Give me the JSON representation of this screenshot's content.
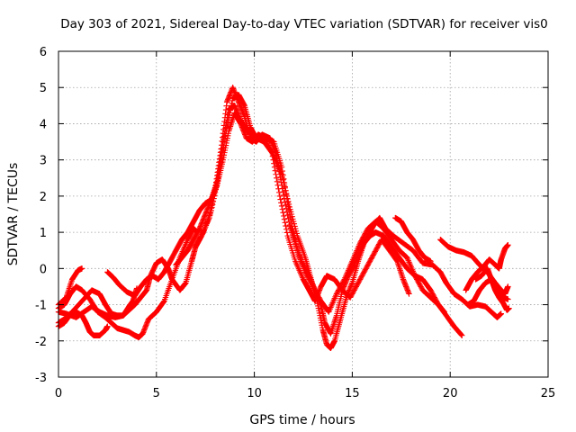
{
  "chart_data": {
    "type": "scatter",
    "title": "Day 303 of 2021, Sidereal Day-to-day VTEC variation (SDTVAR) for receiver vis0",
    "xlabel": "GPS time / hours",
    "ylabel": "SDTVAR / TECUs",
    "xlim": [
      0,
      25
    ],
    "ylim": [
      -3,
      6
    ],
    "x_ticks": [
      0,
      5,
      10,
      15,
      20,
      25
    ],
    "x_tick_labels": [
      "0",
      "5",
      "10",
      "15",
      "20",
      "25"
    ],
    "y_ticks": [
      -3,
      -2,
      -1,
      0,
      1,
      2,
      3,
      4,
      5,
      6
    ],
    "y_tick_labels": [
      "-3",
      "-2",
      "-1",
      "0",
      "1",
      "2",
      "3",
      "4",
      "5",
      "6"
    ],
    "grid": true,
    "marker": "+",
    "color": "#ff0000",
    "series": [
      {
        "name": "track-1",
        "points": [
          [
            0,
            -1.0
          ],
          [
            0.4,
            -0.8
          ],
          [
            0.7,
            -0.3
          ],
          [
            1.0,
            -0.05
          ],
          [
            1.2,
            0.0
          ]
        ]
      },
      {
        "name": "track-2",
        "points": [
          [
            0,
            -1.6
          ],
          [
            0.3,
            -1.5
          ],
          [
            0.7,
            -1.2
          ],
          [
            1.2,
            -0.9
          ],
          [
            1.7,
            -0.6
          ],
          [
            2.1,
            -0.7
          ],
          [
            2.4,
            -1.0
          ],
          [
            2.7,
            -1.25
          ],
          [
            3.0,
            -1.3
          ],
          [
            3.3,
            -1.3
          ],
          [
            3.6,
            -1.05
          ],
          [
            3.8,
            -0.9
          ],
          [
            4.0,
            -0.55
          ]
        ]
      },
      {
        "name": "track-3",
        "points": [
          [
            0,
            -1.1
          ],
          [
            0.3,
            -1.0
          ],
          [
            0.6,
            -0.7
          ],
          [
            0.9,
            -0.5
          ],
          [
            1.2,
            -0.6
          ],
          [
            1.6,
            -0.85
          ],
          [
            2.0,
            -1.2
          ],
          [
            2.4,
            -1.35
          ],
          [
            2.7,
            -1.5
          ],
          [
            3.0,
            -1.65
          ],
          [
            3.3,
            -1.7
          ],
          [
            3.6,
            -1.75
          ],
          [
            3.9,
            -1.85
          ],
          [
            4.1,
            -1.9
          ],
          [
            4.3,
            -1.8
          ],
          [
            4.6,
            -1.4
          ],
          [
            5.0,
            -1.2
          ],
          [
            5.4,
            -0.9
          ],
          [
            5.8,
            -0.3
          ],
          [
            6.2,
            0.3
          ],
          [
            6.6,
            0.8
          ],
          [
            6.9,
            1.1
          ],
          [
            7.1,
            1.0
          ]
        ]
      },
      {
        "name": "track-4",
        "points": [
          [
            0,
            -1.5
          ],
          [
            0.3,
            -1.4
          ],
          [
            0.6,
            -1.25
          ],
          [
            0.9,
            -1.2
          ],
          [
            1.2,
            -1.3
          ],
          [
            1.4,
            -1.5
          ],
          [
            1.6,
            -1.75
          ],
          [
            1.8,
            -1.85
          ],
          [
            2.1,
            -1.85
          ],
          [
            2.4,
            -1.7
          ],
          [
            2.5,
            -1.6
          ]
        ]
      },
      {
        "name": "track-5",
        "points": [
          [
            0,
            -1.2
          ],
          [
            0.4,
            -1.25
          ],
          [
            0.9,
            -1.35
          ],
          [
            1.3,
            -1.2
          ],
          [
            1.7,
            -1.05
          ],
          [
            2.1,
            -1.2
          ],
          [
            2.5,
            -1.3
          ],
          [
            2.9,
            -1.35
          ],
          [
            3.3,
            -1.3
          ],
          [
            3.6,
            -1.15
          ],
          [
            3.9,
            -1.0
          ],
          [
            4.2,
            -0.8
          ],
          [
            4.5,
            -0.6
          ],
          [
            4.7,
            -0.2
          ],
          [
            5.0,
            0.15
          ],
          [
            5.3,
            0.25
          ],
          [
            5.6,
            0.0
          ],
          [
            5.8,
            -0.3
          ],
          [
            6.2,
            -0.6
          ],
          [
            6.5,
            -0.4
          ],
          [
            6.8,
            0.2
          ],
          [
            7.0,
            0.6
          ],
          [
            7.3,
            0.9
          ],
          [
            7.7,
            1.4
          ],
          [
            8.0,
            2.2
          ],
          [
            8.3,
            3.3
          ],
          [
            8.6,
            4.6
          ],
          [
            8.9,
            5.0
          ],
          [
            9.2,
            4.6
          ],
          [
            9.5,
            4.2
          ],
          [
            9.8,
            3.6
          ],
          [
            10.1,
            3.5
          ],
          [
            10.4,
            3.7
          ],
          [
            10.8,
            3.6
          ],
          [
            11.1,
            3.2
          ],
          [
            11.4,
            2.3
          ],
          [
            11.8,
            1.2
          ],
          [
            12.1,
            0.7
          ],
          [
            12.4,
            0.2
          ],
          [
            12.8,
            -0.2
          ],
          [
            13.1,
            -0.6
          ],
          [
            13.4,
            -1.0
          ],
          [
            13.6,
            -1.5
          ],
          [
            13.9,
            -1.8
          ],
          [
            14.2,
            -1.3
          ],
          [
            14.5,
            -0.6
          ],
          [
            14.8,
            -0.2
          ],
          [
            15.1,
            0.1
          ],
          [
            15.5,
            0.6
          ],
          [
            15.8,
            0.9
          ],
          [
            16.1,
            1.2
          ],
          [
            16.4,
            1.4
          ],
          [
            16.7,
            1.1
          ],
          [
            17.1,
            0.9
          ],
          [
            17.6,
            0.7
          ],
          [
            18.1,
            0.5
          ],
          [
            18.6,
            0.15
          ],
          [
            19.1,
            0.1
          ],
          [
            19.5,
            -0.1
          ],
          [
            19.8,
            -0.4
          ],
          [
            20.2,
            -0.7
          ],
          [
            20.6,
            -0.85
          ],
          [
            21.0,
            -1.05
          ],
          [
            21.4,
            -1.0
          ],
          [
            21.8,
            -1.05
          ],
          [
            22.1,
            -1.2
          ],
          [
            22.4,
            -1.35
          ],
          [
            22.6,
            -1.25
          ]
        ]
      },
      {
        "name": "track-6",
        "points": [
          [
            2.5,
            -0.1
          ],
          [
            2.8,
            -0.25
          ],
          [
            3.1,
            -0.45
          ],
          [
            3.5,
            -0.65
          ],
          [
            3.9,
            -0.75
          ],
          [
            4.2,
            -0.5
          ],
          [
            4.5,
            -0.3
          ],
          [
            4.8,
            -0.2
          ],
          [
            5.1,
            -0.3
          ],
          [
            5.4,
            -0.1
          ],
          [
            5.7,
            0.2
          ],
          [
            6.0,
            0.5
          ],
          [
            6.3,
            0.8
          ],
          [
            6.6,
            1.0
          ],
          [
            6.9,
            1.3
          ],
          [
            7.2,
            1.6
          ],
          [
            7.5,
            1.8
          ],
          [
            7.8,
            1.9
          ],
          [
            8.1,
            2.4
          ],
          [
            8.4,
            3.5
          ],
          [
            8.7,
            4.4
          ],
          [
            9.0,
            4.5
          ],
          [
            9.3,
            4.1
          ],
          [
            9.6,
            3.8
          ],
          [
            9.9,
            3.7
          ],
          [
            10.2,
            3.6
          ],
          [
            10.6,
            3.5
          ],
          [
            11.0,
            3.1
          ],
          [
            11.4,
            2.6
          ],
          [
            11.8,
            1.7
          ],
          [
            12.2,
            0.9
          ],
          [
            12.6,
            0.3
          ],
          [
            12.9,
            -0.3
          ],
          [
            13.2,
            -0.9
          ],
          [
            13.5,
            -1.7
          ],
          [
            13.7,
            -2.1
          ],
          [
            13.9,
            -2.2
          ],
          [
            14.1,
            -2.0
          ],
          [
            14.4,
            -1.4
          ],
          [
            14.7,
            -0.8
          ],
          [
            15.0,
            -0.4
          ],
          [
            15.3,
            0.2
          ],
          [
            15.6,
            0.7
          ],
          [
            15.9,
            0.9
          ],
          [
            16.2,
            1.0
          ],
          [
            16.6,
            0.9
          ],
          [
            17.0,
            0.6
          ],
          [
            17.4,
            0.3
          ],
          [
            17.8,
            0.0
          ],
          [
            18.2,
            -0.2
          ],
          [
            18.6,
            -0.3
          ],
          [
            19.0,
            -0.6
          ],
          [
            19.4,
            -1.0
          ],
          [
            19.8,
            -1.3
          ],
          [
            20.2,
            -1.6
          ],
          [
            20.6,
            -1.85
          ]
        ]
      },
      {
        "name": "track-7",
        "points": [
          [
            6.0,
            0.1
          ],
          [
            6.3,
            0.3
          ],
          [
            6.6,
            0.5
          ],
          [
            6.9,
            0.8
          ],
          [
            7.2,
            1.1
          ],
          [
            7.5,
            1.5
          ],
          [
            7.8,
            1.9
          ],
          [
            8.1,
            2.3
          ],
          [
            8.4,
            3.0
          ],
          [
            8.7,
            3.8
          ],
          [
            9.0,
            4.3
          ],
          [
            9.3,
            4.0
          ],
          [
            9.6,
            3.6
          ],
          [
            9.9,
            3.5
          ],
          [
            10.2,
            3.7
          ],
          [
            10.6,
            3.6
          ],
          [
            11.0,
            3.5
          ],
          [
            11.4,
            2.8
          ],
          [
            11.8,
            1.5
          ],
          [
            12.2,
            0.5
          ],
          [
            12.6,
            -0.1
          ],
          [
            13.0,
            -0.5
          ],
          [
            13.4,
            -0.9
          ],
          [
            13.8,
            -1.2
          ],
          [
            14.2,
            -0.7
          ],
          [
            14.6,
            -0.3
          ],
          [
            15.0,
            0.2
          ],
          [
            15.4,
            0.7
          ],
          [
            15.8,
            1.1
          ],
          [
            16.2,
            1.3
          ],
          [
            16.6,
            1.1
          ],
          [
            17.0,
            0.8
          ],
          [
            17.4,
            0.5
          ],
          [
            17.8,
            0.3
          ],
          [
            18.2,
            -0.2
          ],
          [
            18.6,
            -0.6
          ],
          [
            19.0,
            -0.8
          ],
          [
            19.4,
            -1.0
          ],
          [
            19.7,
            -1.2
          ]
        ]
      },
      {
        "name": "track-8",
        "points": [
          [
            7.0,
            0.6
          ],
          [
            7.4,
            1.0
          ],
          [
            7.8,
            1.6
          ],
          [
            8.2,
            2.6
          ],
          [
            8.6,
            3.9
          ],
          [
            8.9,
            4.7
          ],
          [
            9.2,
            4.8
          ],
          [
            9.5,
            4.5
          ],
          [
            9.8,
            3.9
          ],
          [
            10.1,
            3.6
          ],
          [
            10.5,
            3.5
          ],
          [
            10.9,
            3.2
          ],
          [
            11.3,
            2.0
          ],
          [
            11.7,
            0.9
          ],
          [
            12.1,
            0.2
          ],
          [
            12.5,
            -0.3
          ],
          [
            12.8,
            -0.6
          ],
          [
            13.1,
            -0.9
          ],
          [
            13.4,
            -0.5
          ],
          [
            13.7,
            -0.2
          ],
          [
            14.1,
            -0.3
          ],
          [
            14.5,
            -0.6
          ],
          [
            14.9,
            -0.8
          ],
          [
            15.3,
            -0.4
          ],
          [
            15.7,
            0.0
          ],
          [
            16.1,
            0.4
          ],
          [
            16.5,
            0.8
          ],
          [
            16.9,
            0.5
          ],
          [
            17.3,
            0.2
          ],
          [
            17.6,
            -0.3
          ],
          [
            17.9,
            -0.7
          ]
        ]
      },
      {
        "name": "track-9",
        "points": [
          [
            17.2,
            1.4
          ],
          [
            17.5,
            1.3
          ],
          [
            17.8,
            1.0
          ],
          [
            18.1,
            0.8
          ],
          [
            18.4,
            0.5
          ],
          [
            18.7,
            0.3
          ],
          [
            19.0,
            0.2
          ]
        ]
      },
      {
        "name": "track-10",
        "points": [
          [
            19.5,
            0.8
          ],
          [
            19.9,
            0.6
          ],
          [
            20.3,
            0.5
          ],
          [
            20.7,
            0.45
          ],
          [
            21.1,
            0.35
          ],
          [
            21.5,
            0.1
          ],
          [
            21.9,
            -0.1
          ],
          [
            22.3,
            -0.4
          ],
          [
            22.6,
            -0.6
          ],
          [
            22.8,
            -0.7
          ],
          [
            22.95,
            -0.5
          ]
        ]
      },
      {
        "name": "track-11",
        "points": [
          [
            20.8,
            -0.6
          ],
          [
            21.1,
            -0.3
          ],
          [
            21.4,
            -0.1
          ],
          [
            21.7,
            0.05
          ],
          [
            22.0,
            0.25
          ],
          [
            22.3,
            0.1
          ],
          [
            22.5,
            0.0
          ],
          [
            22.6,
            0.25
          ],
          [
            22.8,
            0.55
          ],
          [
            22.95,
            0.65
          ]
        ]
      },
      {
        "name": "track-12",
        "points": [
          [
            21.3,
            -0.3
          ],
          [
            21.6,
            -0.2
          ],
          [
            21.9,
            0.0
          ],
          [
            22.1,
            -0.3
          ],
          [
            22.3,
            -0.6
          ],
          [
            22.5,
            -0.8
          ],
          [
            22.7,
            -0.95
          ],
          [
            22.9,
            -1.15
          ],
          [
            23.0,
            -1.1
          ]
        ]
      },
      {
        "name": "track-13",
        "points": [
          [
            20.9,
            -1.0
          ],
          [
            21.2,
            -0.9
          ],
          [
            21.5,
            -0.6
          ],
          [
            21.8,
            -0.4
          ],
          [
            22.1,
            -0.3
          ],
          [
            22.4,
            -0.5
          ],
          [
            22.7,
            -0.8
          ],
          [
            22.95,
            -0.85
          ]
        ]
      }
    ]
  }
}
